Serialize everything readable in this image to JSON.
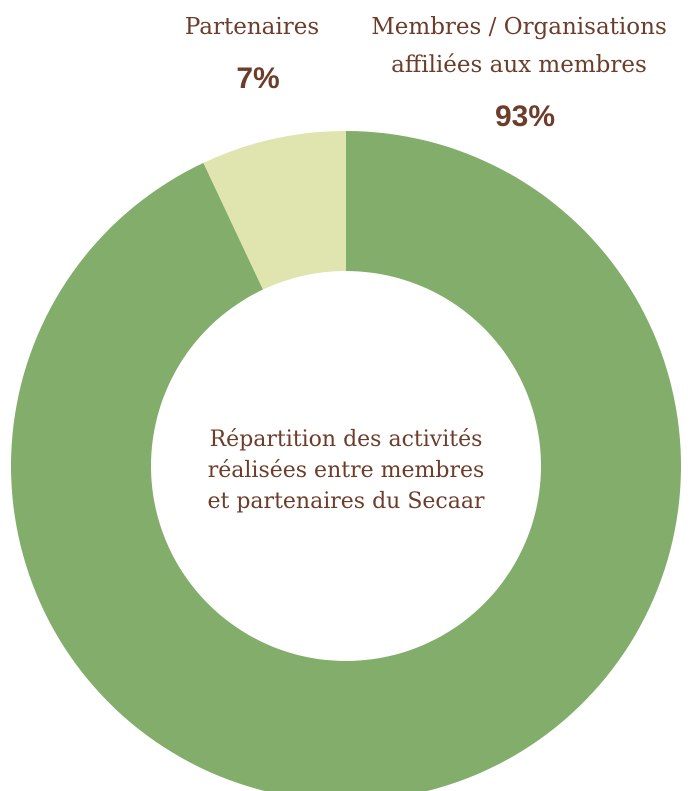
{
  "chart_data": {
    "type": "donut",
    "title": [
      "Répartition des activités",
      "réalisées entre membres",
      "et partenaires du Secaar"
    ],
    "categories": [
      [
        "Membres / Organisations",
        "affiliées aux membres"
      ],
      [
        "Partenaires"
      ]
    ],
    "values": [
      93,
      7
    ],
    "value_labels": [
      "93%",
      "7%"
    ],
    "colors": [
      "#82ad6a",
      "#e0e4ae"
    ]
  }
}
